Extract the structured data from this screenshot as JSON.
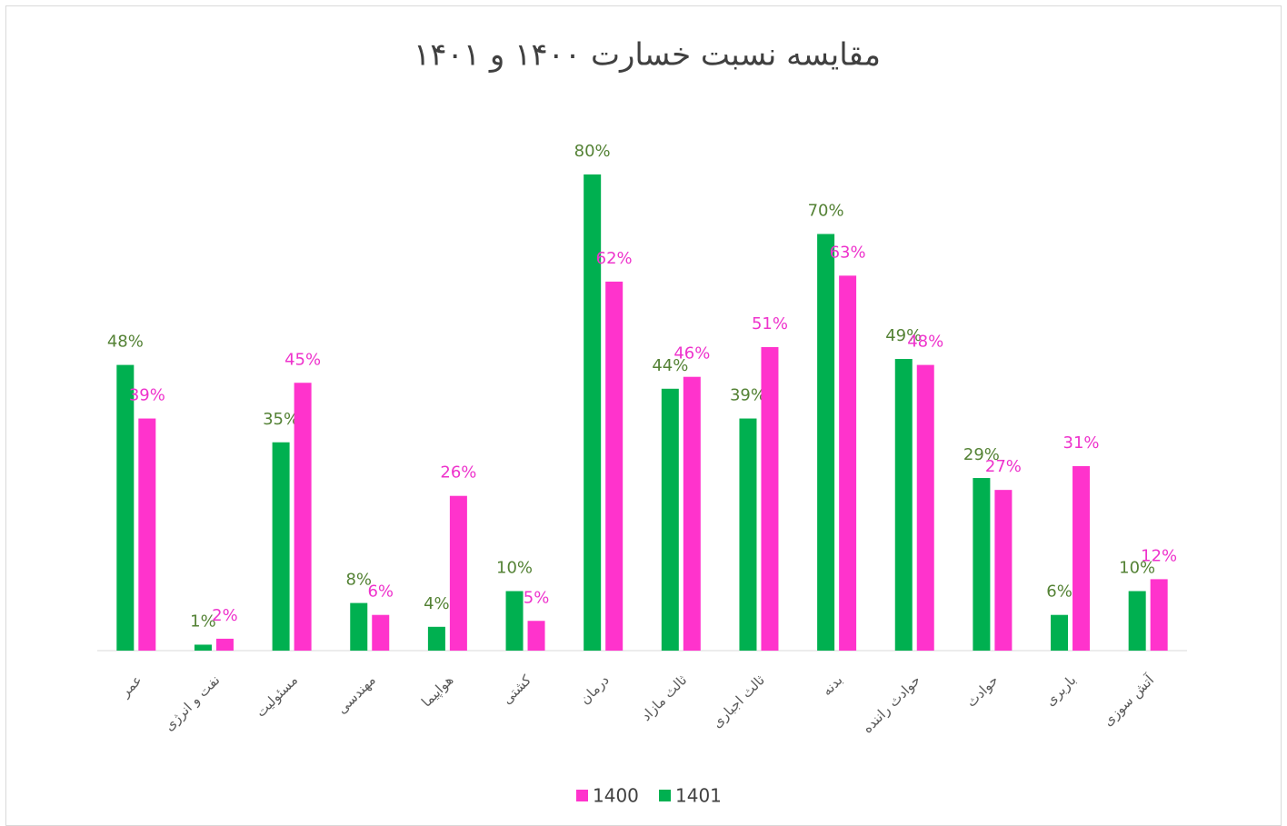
{
  "chart_data": {
    "type": "bar",
    "title": "مقایسه نسبت خسارت ۱۴۰۰ و ۱۴۰۱",
    "categories": [
      "عمر",
      "نفت و انرژی",
      "مسئولیت",
      "مهندسی",
      "هواپیما",
      "کشتی",
      "درمان",
      "ثالث مازاد",
      "ثالث اجباری",
      "بدنه",
      "حوادث راننده",
      "حوادث",
      "باربری",
      "آتش سوزی"
    ],
    "series": [
      {
        "name": "1401",
        "color": "#00b050",
        "label_color": "#548235",
        "values": [
          48,
          1,
          35,
          8,
          4,
          10,
          80,
          44,
          39,
          70,
          49,
          29,
          6,
          10
        ],
        "value_labels": [
          "48%",
          "1%",
          "35%",
          "8%",
          "4%",
          "10%",
          "80%",
          "44%",
          "39%",
          "70%",
          "49%",
          "29%",
          "6%",
          "10%"
        ]
      },
      {
        "name": "1400",
        "color": "#ff33cc",
        "label_color": "#ee33cc",
        "values": [
          39,
          2,
          45,
          6,
          26,
          5,
          62,
          46,
          51,
          63,
          48,
          27,
          31,
          12
        ],
        "value_labels": [
          "39%",
          "2%",
          "45%",
          "6%",
          "26%",
          "5%",
          "62%",
          "46%",
          "51%",
          "63%",
          "48%",
          "27%",
          "31%",
          "12%"
        ]
      }
    ],
    "ylim": [
      0,
      90
    ],
    "legend": "bottom"
  }
}
